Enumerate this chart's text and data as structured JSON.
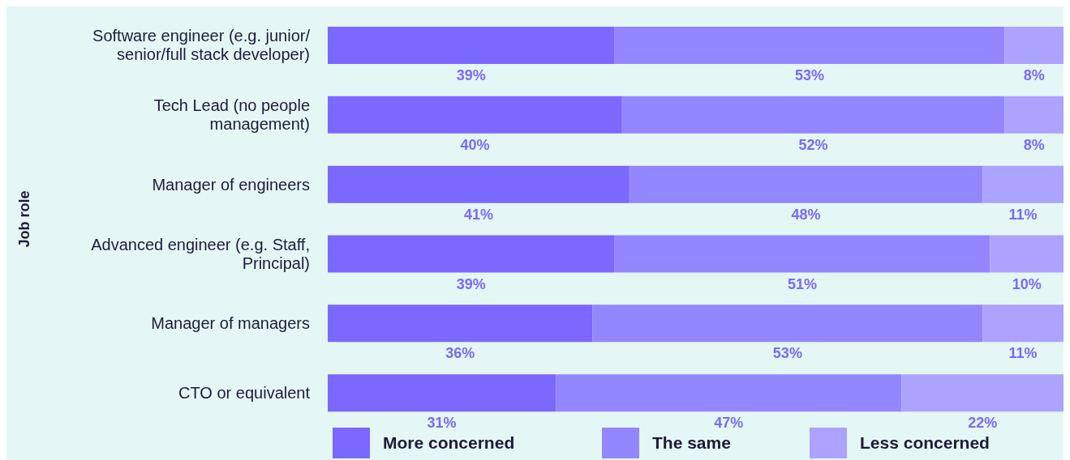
{
  "chart_data": {
    "type": "bar",
    "orientation": "horizontal",
    "stacked": true,
    "ylabel": "Job role",
    "categories": [
      "Software engineer (e.g. junior/senior/full stack developer)",
      "Tech Lead (no people management)",
      "Manager of engineers",
      "Advanced engineer (e.g. Staff, Principal)",
      "Manager of managers",
      "CTO or equivalent"
    ],
    "series": [
      {
        "name": "More concerned",
        "color": "#7b68fe",
        "values": [
          39,
          40,
          41,
          39,
          36,
          31
        ],
        "value_labels": [
          "39%",
          "40%",
          "41%",
          "39%",
          "36%",
          "31%"
        ]
      },
      {
        "name": "The same",
        "color": "#9287ff",
        "values": [
          53,
          52,
          48,
          51,
          53,
          47
        ],
        "value_labels": [
          "53%",
          "52%",
          "48%",
          "51%",
          "53%",
          "47%"
        ]
      },
      {
        "name": "Less concerned",
        "color": "#aba3fe",
        "values": [
          8,
          8,
          11,
          10,
          11,
          22
        ],
        "value_labels": [
          "8%",
          "8%",
          "11%",
          "10%",
          "11%",
          "22%"
        ]
      }
    ],
    "xlim": [
      0,
      100
    ],
    "tick_labels": "y",
    "grid": false,
    "legend": "bottom"
  }
}
